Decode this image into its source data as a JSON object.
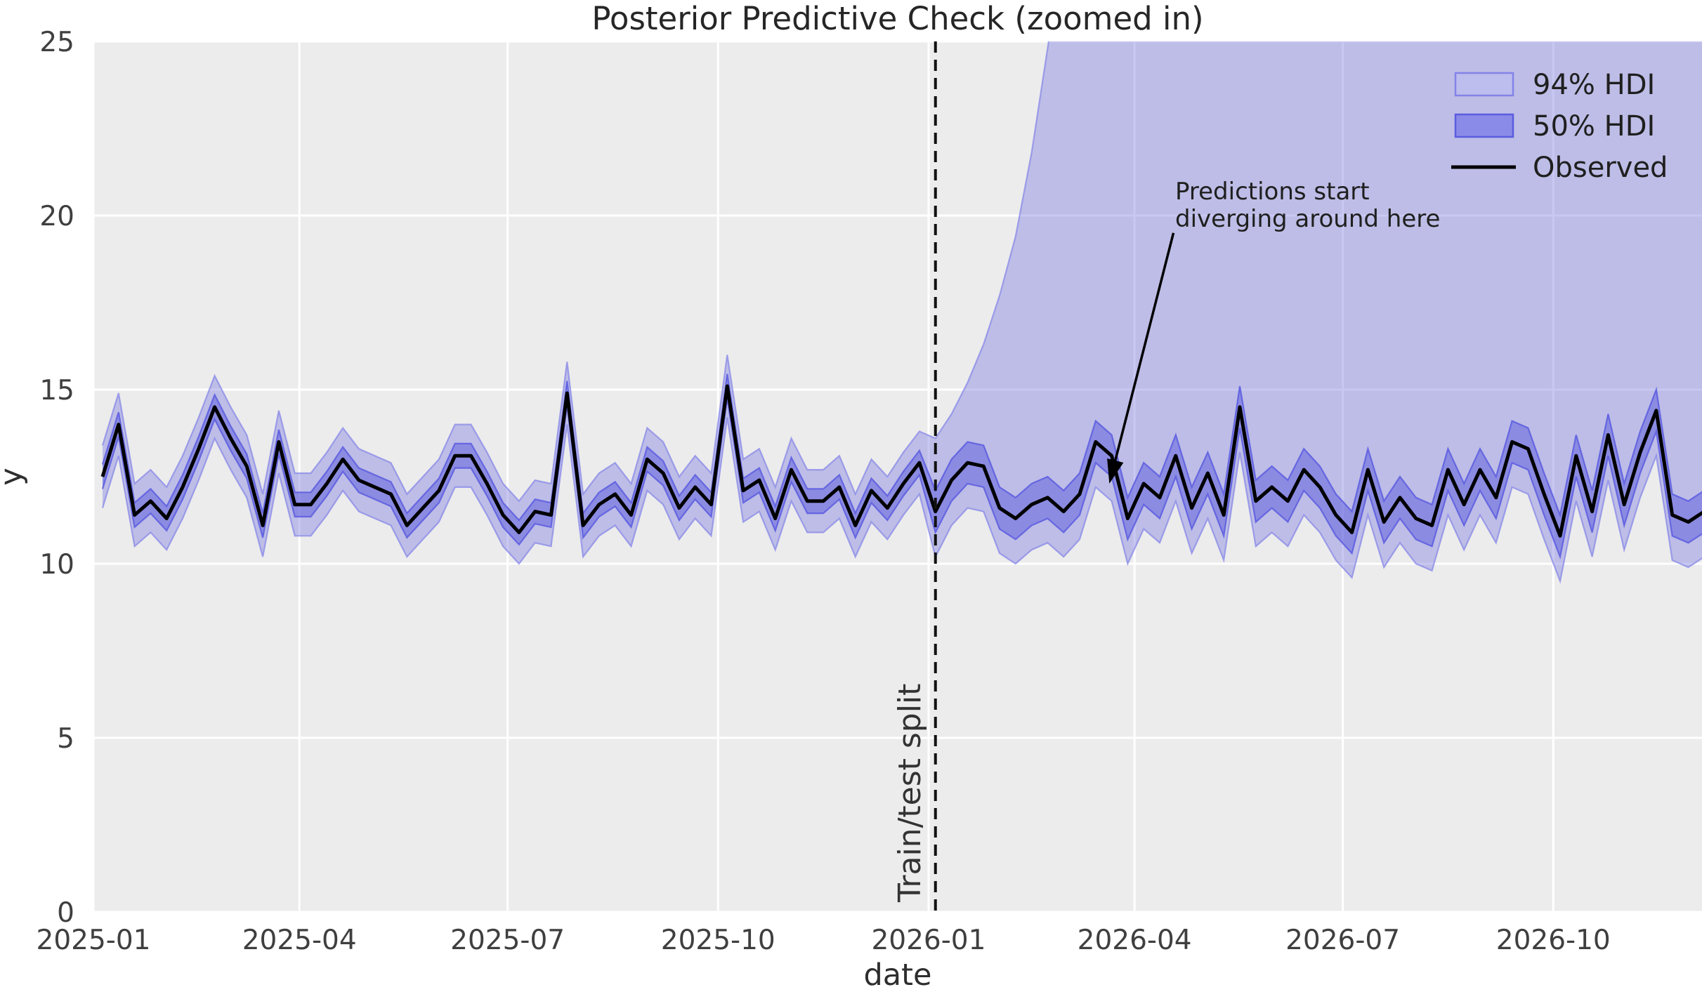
{
  "title": "Posterior Predictive Check (zoomed in)",
  "axes": {
    "xlabel": "date",
    "ylabel": "y",
    "ylim": [
      0,
      25
    ],
    "y_ticks": [
      0,
      5,
      10,
      15,
      20,
      25
    ],
    "x_ticks": [
      {
        "label": "2025-01",
        "date": "2025-01-01"
      },
      {
        "label": "2025-04",
        "date": "2025-04-01"
      },
      {
        "label": "2025-07",
        "date": "2025-07-01"
      },
      {
        "label": "2025-10",
        "date": "2025-10-01"
      },
      {
        "label": "2026-01",
        "date": "2026-01-01"
      },
      {
        "label": "2026-04",
        "date": "2026-04-01"
      },
      {
        "label": "2026-07",
        "date": "2026-07-01"
      },
      {
        "label": "2026-10",
        "date": "2026-10-01"
      }
    ],
    "x_domain": {
      "start": "2025-01-01",
      "end": "2026-12-05"
    },
    "grid": "on"
  },
  "legend": {
    "position": "upper right",
    "items": [
      {
        "label": "94% HDI",
        "type": "patch"
      },
      {
        "label": "50% HDI",
        "type": "patch"
      },
      {
        "label": "Observed",
        "type": "line"
      }
    ]
  },
  "annotations": {
    "split": {
      "label": "Train/test split",
      "date": "2026-01-04"
    },
    "diverge": {
      "line1": "Predictions start",
      "line2": "diverging around here",
      "arrow_from": {
        "date": "2026-04-18",
        "y": 19.5
      },
      "arrow_to": {
        "date": "2026-03-21",
        "y": 12.3
      }
    }
  },
  "colors": {
    "plot_bg": "#ececec",
    "grid": "#ffffff",
    "hdi94_fill": "#7b7be0",
    "hdi94_edge": "#8383e8",
    "hdi50_fill": "#5d5dde",
    "hdi50_edge": "#5c5ce0",
    "legend94_swatch": "#bdbdee",
    "legend50_swatch": "#8a8ae8",
    "observed": "#000000",
    "split_line": "#111111",
    "text": "#2e2e2e"
  },
  "chart_data": {
    "type": "line",
    "title": "Posterior Predictive Check (zoomed in)",
    "xlabel": "date",
    "ylabel": "y",
    "ylim": [
      0,
      25
    ],
    "x_start": "2025-01-05",
    "x_freq_days": 7,
    "n_points": 101,
    "train_test_split_index": 52,
    "series": [
      {
        "name": "Observed",
        "values": [
          12.5,
          14.0,
          11.4,
          11.8,
          11.3,
          12.2,
          13.3,
          14.5,
          13.6,
          12.8,
          11.1,
          13.5,
          11.7,
          11.7,
          12.3,
          13.0,
          12.4,
          12.2,
          12.0,
          11.1,
          11.6,
          12.1,
          13.1,
          13.1,
          12.3,
          11.4,
          10.9,
          11.5,
          11.4,
          14.9,
          11.1,
          11.7,
          12.0,
          11.4,
          13.0,
          12.6,
          11.6,
          12.2,
          11.7,
          15.1,
          12.1,
          12.4,
          11.3,
          12.7,
          11.8,
          11.8,
          12.2,
          11.1,
          12.1,
          11.6,
          12.3,
          12.9,
          11.5,
          12.4,
          12.9,
          12.8,
          11.6,
          11.3,
          11.7,
          11.9,
          11.5,
          12.0,
          13.5,
          13.1,
          11.3,
          12.3,
          11.9,
          13.1,
          11.6,
          12.6,
          11.4,
          14.5,
          11.8,
          12.2,
          11.8,
          12.7,
          12.2,
          11.4,
          10.9,
          12.7,
          11.2,
          11.9,
          11.3,
          11.1,
          12.7,
          11.7,
          12.7,
          11.9,
          13.5,
          13.3,
          12.0,
          10.8,
          13.1,
          11.5,
          13.7,
          11.7,
          13.2,
          14.4,
          11.4,
          11.2,
          11.5
        ]
      },
      {
        "name": "94% HDI lower",
        "values": [
          11.6,
          13.1,
          10.5,
          10.9,
          10.4,
          11.3,
          12.4,
          13.6,
          12.7,
          11.9,
          10.2,
          12.6,
          10.8,
          10.8,
          11.4,
          12.1,
          11.5,
          11.3,
          11.1,
          10.2,
          10.7,
          11.2,
          12.2,
          12.2,
          11.4,
          10.5,
          10.0,
          10.6,
          10.5,
          14.0,
          10.2,
          10.8,
          11.1,
          10.5,
          12.1,
          11.7,
          10.7,
          11.3,
          10.8,
          14.2,
          11.2,
          11.5,
          10.4,
          11.8,
          10.9,
          10.9,
          11.3,
          10.2,
          11.2,
          10.7,
          11.4,
          12.0,
          10.2,
          11.1,
          11.6,
          11.5,
          10.3,
          10.0,
          10.4,
          10.6,
          10.2,
          10.7,
          12.2,
          11.8,
          10.0,
          11.0,
          10.6,
          11.8,
          10.3,
          11.3,
          10.1,
          13.2,
          10.5,
          10.9,
          10.5,
          11.4,
          10.9,
          10.1,
          9.6,
          11.4,
          9.9,
          10.6,
          10.0,
          9.8,
          11.4,
          10.4,
          11.4,
          10.6,
          12.2,
          12.0,
          10.7,
          9.5,
          11.8,
          10.2,
          12.4,
          10.4,
          11.9,
          13.1,
          10.1,
          9.9,
          10.2
        ]
      },
      {
        "name": "94% HDI upper",
        "values": [
          13.4,
          14.9,
          12.3,
          12.7,
          12.2,
          13.1,
          14.2,
          15.4,
          14.5,
          13.7,
          12.0,
          14.4,
          12.6,
          12.6,
          13.2,
          13.9,
          13.3,
          13.1,
          12.9,
          12.0,
          12.5,
          13.0,
          14.0,
          14.0,
          13.2,
          12.3,
          11.8,
          12.4,
          12.3,
          15.8,
          12.0,
          12.6,
          12.9,
          12.3,
          13.9,
          13.5,
          12.5,
          13.1,
          12.6,
          16.0,
          13.0,
          13.3,
          12.2,
          13.6,
          12.7,
          12.7,
          13.1,
          12.0,
          13.0,
          12.5,
          13.2,
          13.8,
          13.6,
          14.3,
          15.2,
          16.3,
          17.7,
          19.4,
          21.8,
          24.8,
          28.0,
          30.0,
          30.0,
          30.0,
          30.0,
          30.0,
          30.0,
          30.0,
          30.0,
          30.0,
          30.0,
          30.0,
          30.0,
          30.0,
          30.0,
          30.0,
          30.0,
          30.0,
          30.0,
          30.0,
          30.0,
          30.0,
          30.0,
          30.0,
          30.0,
          30.0,
          30.0,
          30.0,
          30.0,
          30.0,
          30.0,
          30.0,
          30.0,
          30.0,
          30.0,
          30.0,
          30.0,
          30.0,
          30.0,
          30.0,
          30.0
        ]
      },
      {
        "name": "50% HDI lower",
        "values": [
          12.15,
          13.65,
          11.05,
          11.45,
          10.95,
          11.85,
          12.95,
          14.15,
          13.25,
          12.45,
          10.75,
          13.15,
          11.35,
          11.35,
          11.95,
          12.65,
          12.05,
          11.85,
          11.65,
          10.75,
          11.25,
          11.75,
          12.75,
          12.75,
          11.95,
          11.05,
          10.55,
          11.15,
          11.05,
          14.55,
          10.75,
          11.35,
          11.65,
          11.05,
          12.65,
          12.25,
          11.25,
          11.85,
          11.35,
          14.75,
          11.75,
          12.05,
          10.95,
          12.35,
          11.45,
          11.45,
          11.85,
          10.75,
          11.75,
          11.25,
          11.95,
          12.55,
          10.9,
          11.8,
          12.3,
          12.2,
          11.0,
          10.7,
          11.1,
          11.3,
          10.9,
          11.4,
          12.9,
          12.5,
          10.7,
          11.7,
          11.3,
          12.5,
          11.0,
          12.0,
          10.8,
          13.9,
          11.2,
          11.6,
          11.2,
          12.1,
          11.6,
          10.8,
          10.3,
          12.1,
          10.6,
          11.3,
          10.7,
          10.5,
          12.1,
          11.1,
          12.1,
          11.3,
          12.9,
          12.7,
          11.4,
          10.2,
          12.5,
          10.9,
          13.1,
          11.1,
          12.6,
          13.8,
          10.8,
          10.6,
          10.9
        ]
      },
      {
        "name": "50% HDI upper",
        "values": [
          12.85,
          14.35,
          11.75,
          12.15,
          11.65,
          12.55,
          13.65,
          14.85,
          13.95,
          13.15,
          11.45,
          13.85,
          12.05,
          12.05,
          12.65,
          13.35,
          12.75,
          12.55,
          12.35,
          11.45,
          11.95,
          12.45,
          13.45,
          13.45,
          12.65,
          11.75,
          11.25,
          11.85,
          11.75,
          15.25,
          11.45,
          12.05,
          12.35,
          11.75,
          13.35,
          12.95,
          11.95,
          12.55,
          12.05,
          15.45,
          12.45,
          12.75,
          11.65,
          13.05,
          12.15,
          12.15,
          12.55,
          11.45,
          12.45,
          11.95,
          12.65,
          13.25,
          12.1,
          13.0,
          13.5,
          13.4,
          12.2,
          11.9,
          12.3,
          12.5,
          12.1,
          12.6,
          14.1,
          13.7,
          11.9,
          12.9,
          12.5,
          13.7,
          12.2,
          13.2,
          12.0,
          15.1,
          12.4,
          12.8,
          12.4,
          13.3,
          12.8,
          12.0,
          11.5,
          13.3,
          11.8,
          12.5,
          11.9,
          11.7,
          13.3,
          12.3,
          13.3,
          12.5,
          14.1,
          13.9,
          12.6,
          11.4,
          13.7,
          12.1,
          14.3,
          12.3,
          13.8,
          15.0,
          12.0,
          11.8,
          12.1
        ]
      }
    ]
  }
}
